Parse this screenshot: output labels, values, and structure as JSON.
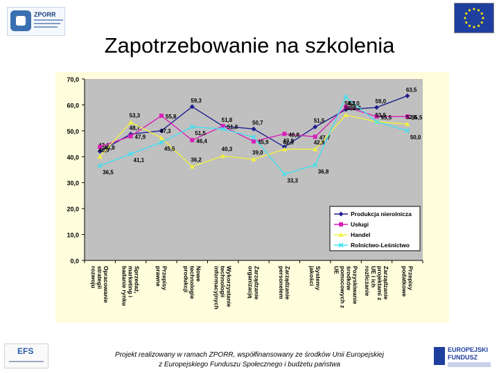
{
  "header": {
    "logo_text": "ZPORR",
    "title": "Zapotrzebowanie na szkolenia"
  },
  "footer": {
    "line1": "Projekt realizowany w ramach ZPORR, współfinansowany ze środków Unii Europejskiej",
    "line2": "z Europejskiego Funduszu Społecznego i budżetu państwa"
  },
  "colors": {
    "plot_bg": "#c0c0c0",
    "outer_bg": "#fefedd",
    "Produkcja_nierolnicza": "#1f1f8f",
    "Uslugi": "#d81fb8",
    "Handel": "#f0f040",
    "Rolnictwo": "#40e0f0"
  },
  "chart_data": {
    "type": "line",
    "categories": [
      "Opracowanie strategii rozwoju",
      "Sprzedaż, marketing i badanie rynku",
      "Przepisy prawne",
      "Nowe technologie produkcji",
      "Wykorzystanie technologii informacyjnych",
      "Zarządzanie organizacją",
      "Zarządzanie personelem",
      "Systemy jakości",
      "Pozyskiwanie środków pomocowych z UE",
      "Zarządzanie projektami z UE i ich rozliczanie",
      "Przepisy podatkowe"
    ],
    "series": [
      {
        "name": "Produkcja nierolnicza",
        "values": [
          42.1,
          48.7,
          50.0,
          59.3,
          51.8,
          50.7,
          43.8,
          51.5,
          58.2,
          59.0,
          63.5
        ]
      },
      {
        "name": "Usługi",
        "values": [
          43.8,
          47.9,
          55.8,
          46.4,
          51.8,
          45.9,
          48.8,
          47.7,
          59.2,
          55.5,
          55.5
        ]
      },
      {
        "name": "Handel",
        "values": [
          40.0,
          53.3,
          47.3,
          36.2,
          40.3,
          39.0,
          42.9,
          42.9,
          56.1,
          53.5,
          52.6
        ]
      },
      {
        "name": "Rolnictwo-Leśnictwo",
        "values": [
          36.5,
          41.1,
          45.5,
          51.5,
          50.7,
          47.5,
          33.3,
          36.8,
          63.0,
          53.5,
          50.0
        ]
      }
    ],
    "point_labels": [
      [
        "42,1",
        "48,7",
        "",
        "59,3",
        "51,8",
        "50,7",
        "43,8",
        "51,5",
        "58,2",
        "59,0",
        "63,5"
      ],
      [
        "43,8",
        "47,9",
        "55,8",
        "46,4",
        "51,8",
        "45,9",
        "48,8",
        "47,7",
        "59,2",
        "55,5",
        "55,5"
      ],
      [
        "40,0",
        "53,3",
        "47,3",
        "36,2",
        "40,3",
        "39,0",
        "42,9",
        "42,9",
        "56,1",
        "53,5",
        "52,6"
      ],
      [
        "36,5",
        "41,1",
        "45,5",
        "51,5",
        "",
        "",
        "33,3",
        "36,8",
        "63,0",
        "",
        "50,0"
      ]
    ],
    "yticks": [
      "0,0",
      "10,0",
      "20,0",
      "30,0",
      "40,0",
      "50,0",
      "60,0",
      "70,0"
    ],
    "ylim": [
      0,
      70
    ],
    "legend": "inside-right",
    "grid": false
  }
}
